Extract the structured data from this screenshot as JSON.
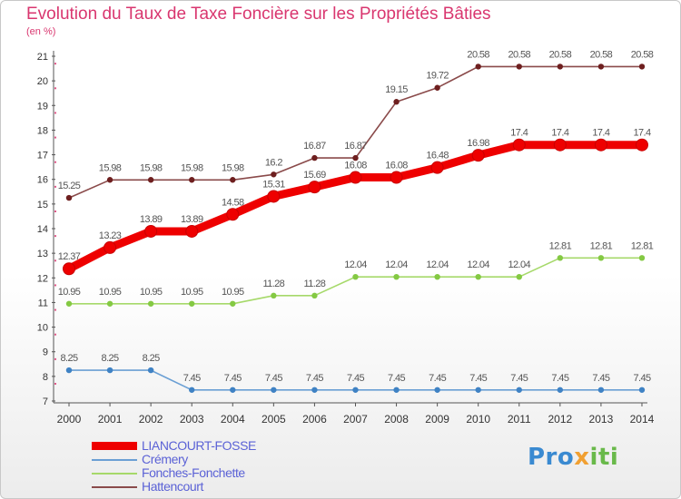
{
  "page": {
    "title": "Evolution du Taux de Taxe Foncière sur les Propriétés Bâties",
    "unit": "(en %)",
    "logo_text": "Proxiti",
    "logo_parts": [
      "Pro",
      "x",
      "iti"
    ]
  },
  "chart_data": {
    "type": "line",
    "title": "Evolution du Taux de Taxe Foncière sur les Propriétés Bâties",
    "ylabel": "(en %)",
    "xlabel": "",
    "ylim": [
      7,
      21
    ],
    "yticks": [
      7,
      8,
      9,
      10,
      11,
      12,
      13,
      14,
      15,
      16,
      17,
      18,
      19,
      20,
      21
    ],
    "grid": false,
    "legend_position": "bottom-left",
    "x": [
      "2000",
      "2001",
      "2002",
      "2003",
      "2004",
      "2005",
      "2006",
      "2007",
      "2008",
      "2009",
      "2010",
      "2011",
      "2012",
      "2013",
      "2014"
    ],
    "series": [
      {
        "name": "LIANCOURT-FOSSE",
        "color": "#ee0000",
        "markerColor": "#ee0000",
        "thick": true,
        "values": [
          12.37,
          13.23,
          13.89,
          13.89,
          14.58,
          15.31,
          15.69,
          16.08,
          16.08,
          16.48,
          16.98,
          17.4,
          17.4,
          17.4,
          17.4
        ]
      },
      {
        "name": "Crémery",
        "color": "#6a9fd4",
        "markerColor": "#3f82c4",
        "thick": false,
        "values": [
          8.25,
          8.25,
          8.25,
          7.45,
          7.45,
          7.45,
          7.45,
          7.45,
          7.45,
          7.45,
          7.45,
          7.45,
          7.45,
          7.45,
          7.45
        ]
      },
      {
        "name": "Fonches-Fonchette",
        "color": "#a6d96a",
        "markerColor": "#84c943",
        "thick": false,
        "values": [
          10.95,
          10.95,
          10.95,
          10.95,
          10.95,
          11.28,
          11.28,
          12.04,
          12.04,
          12.04,
          12.04,
          12.04,
          12.81,
          12.81,
          12.81
        ]
      },
      {
        "name": "Hattencourt",
        "color": "#8a4a4a",
        "markerColor": "#6e1f1f",
        "thick": false,
        "values": [
          15.25,
          15.98,
          15.98,
          15.98,
          15.98,
          16.2,
          16.87,
          16.87,
          19.15,
          19.72,
          20.58,
          20.58,
          20.58,
          20.58,
          20.58
        ]
      }
    ],
    "data_labels": [
      [
        "12.37",
        "13.23",
        "13.89",
        "13.89",
        "14.58",
        "15.31",
        "15.69",
        "16.08",
        "16.08",
        "16.48",
        "16.98",
        "17.4",
        "17.4",
        "17.4",
        "17.4"
      ],
      [
        "8.25",
        "8.25",
        "8.25",
        "7.45",
        "7.45",
        "7.45",
        "7.45",
        "7.45",
        "7.45",
        "7.45",
        "7.45",
        "7.45",
        "7.45",
        "7.45",
        "7.45"
      ],
      [
        "10.95",
        "10.95",
        "10.95",
        "10.95",
        "10.95",
        "11.28",
        "11.28",
        "12.04",
        "12.04",
        "12.04",
        "12.04",
        "12.04",
        "12.81",
        "12.81",
        "12.81"
      ],
      [
        "15.25",
        "15.98",
        "15.98",
        "15.98",
        "15.98",
        "16.2",
        "16.87",
        "16.87",
        "19.15",
        "19.72",
        "20.58",
        "20.58",
        "20.58",
        "20.58",
        "20.58"
      ]
    ]
  }
}
